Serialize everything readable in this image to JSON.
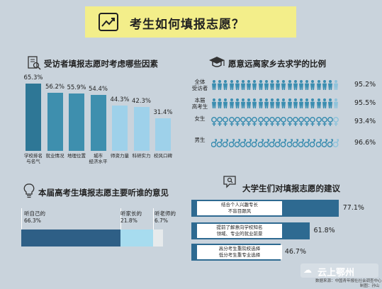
{
  "header": {
    "title": "考生如何填报志愿？"
  },
  "factors": {
    "title": "受访者填报志愿时考虑哪些因素",
    "chart_data": {
      "type": "bar",
      "categories": [
        "学校排名\n与名气",
        "就业情况",
        "地理位置",
        "城市\n经济水平",
        "师资力量",
        "科研实力",
        "校风口碑"
      ],
      "values": [
        65.3,
        56.2,
        55.9,
        54.4,
        44.3,
        42.3,
        31.4
      ],
      "value_labels": [
        "65.3%",
        "56.2%",
        "55.9%",
        "54.4%",
        "44.3%",
        "42.3%",
        "31.4%"
      ],
      "ylim": [
        0,
        70
      ],
      "colors": [
        "#2e7796",
        "#3e8fae",
        "#3e8fae",
        "#3e8fae",
        "#9ed1ea",
        "#9ed1ea",
        "#9ed1ea"
      ]
    }
  },
  "far": {
    "title": "愿意远离家乡去求学的比例",
    "chart_data": {
      "type": "bar",
      "categories": [
        "全体\n受访者",
        "本届\n高考生",
        "女生",
        "男生"
      ],
      "values": [
        95.2,
        95.5,
        93.4,
        96.6
      ],
      "value_labels": [
        "95.2%",
        "95.5%",
        "93.4%",
        "96.6%"
      ],
      "ylim": [
        0,
        100
      ]
    },
    "icons": [
      "person-icon",
      "person-icon",
      "female-icon",
      "male-icon"
    ],
    "colors": {
      "filled": "#3a8db0",
      "empty": "#8fc3db"
    }
  },
  "advice": {
    "title": "本届高考生填报志愿主要听谁的意见",
    "chart_data": {
      "type": "bar",
      "categories": [
        "听自己的",
        "听家长的",
        "听老师的"
      ],
      "values": [
        66.3,
        21.8,
        6.7
      ],
      "value_labels": [
        "66.3%",
        "21.8%",
        "6.7%"
      ],
      "ylim": [
        0,
        100
      ],
      "colors": [
        "#2e5f86",
        "#a7dcef",
        "#e6eaec"
      ]
    }
  },
  "suggestions": {
    "title": "大学生们对填报志愿的建议",
    "chart_data": {
      "type": "bar",
      "categories": [
        "结合个人兴趣专长\n不盲目跟风",
        "提前了解意向学校知名\n领域、专业的就业前景",
        "高分考生重院校选择\n低分考生重专业选择"
      ],
      "values": [
        77.1,
        61.8,
        46.7
      ],
      "value_labels": [
        "77.1%",
        "61.8%",
        "46.7%"
      ],
      "xlim": [
        0,
        100
      ],
      "colors": [
        "#2e6a91",
        "#2e6a91",
        "#2e6a91"
      ]
    }
  },
  "footer": {
    "source": "数据来源：中国青年报社社会调查中心",
    "credit": "制图：孙山",
    "watermark": "云上鄂州"
  }
}
